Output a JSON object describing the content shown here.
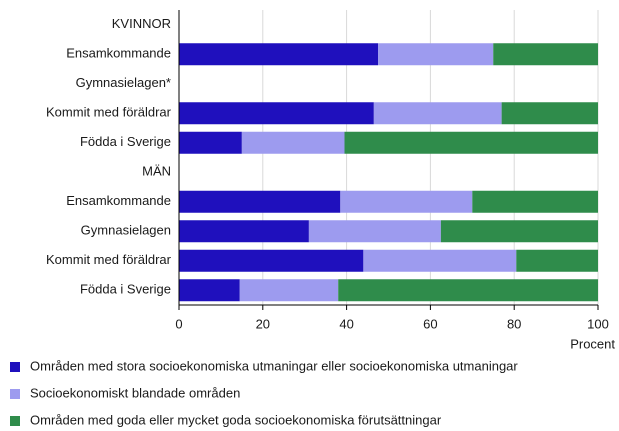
{
  "chart_data": {
    "type": "stacked_barh",
    "categories": [
      "KVINNOR",
      "Ensamkommande",
      "Gymnasielagen*",
      "Kommit med föräldrar",
      "Födda i Sverige",
      "MÄN",
      "Ensamkommande",
      "Gymnasielagen",
      "Kommit med föräldrar",
      "Födda i Sverige"
    ],
    "series": [
      {
        "name": "Områden med stora socioekonomiska utmaningar eller socioekonomiska utmaningar",
        "color": "#1f10bd",
        "values": [
          null,
          47.5,
          null,
          46.5,
          15,
          null,
          38.5,
          31,
          44,
          14.5
        ]
      },
      {
        "name": "Socioekonomiskt blandade områden",
        "color": "#9d9bef",
        "values": [
          null,
          27.5,
          null,
          30.5,
          24.5,
          null,
          31.5,
          31.5,
          36.5,
          23.5
        ]
      },
      {
        "name": "Områden med goda eller mycket goda socioekonomiska förutsättningar",
        "color": "#2f8c4b",
        "values": [
          null,
          25,
          null,
          23,
          60.5,
          null,
          30,
          37.5,
          19.5,
          62
        ]
      }
    ],
    "xlabel": "Procent",
    "xlim": [
      0,
      100
    ],
    "xticks": [
      0,
      20,
      40,
      60,
      80,
      100
    ],
    "grid": true
  }
}
